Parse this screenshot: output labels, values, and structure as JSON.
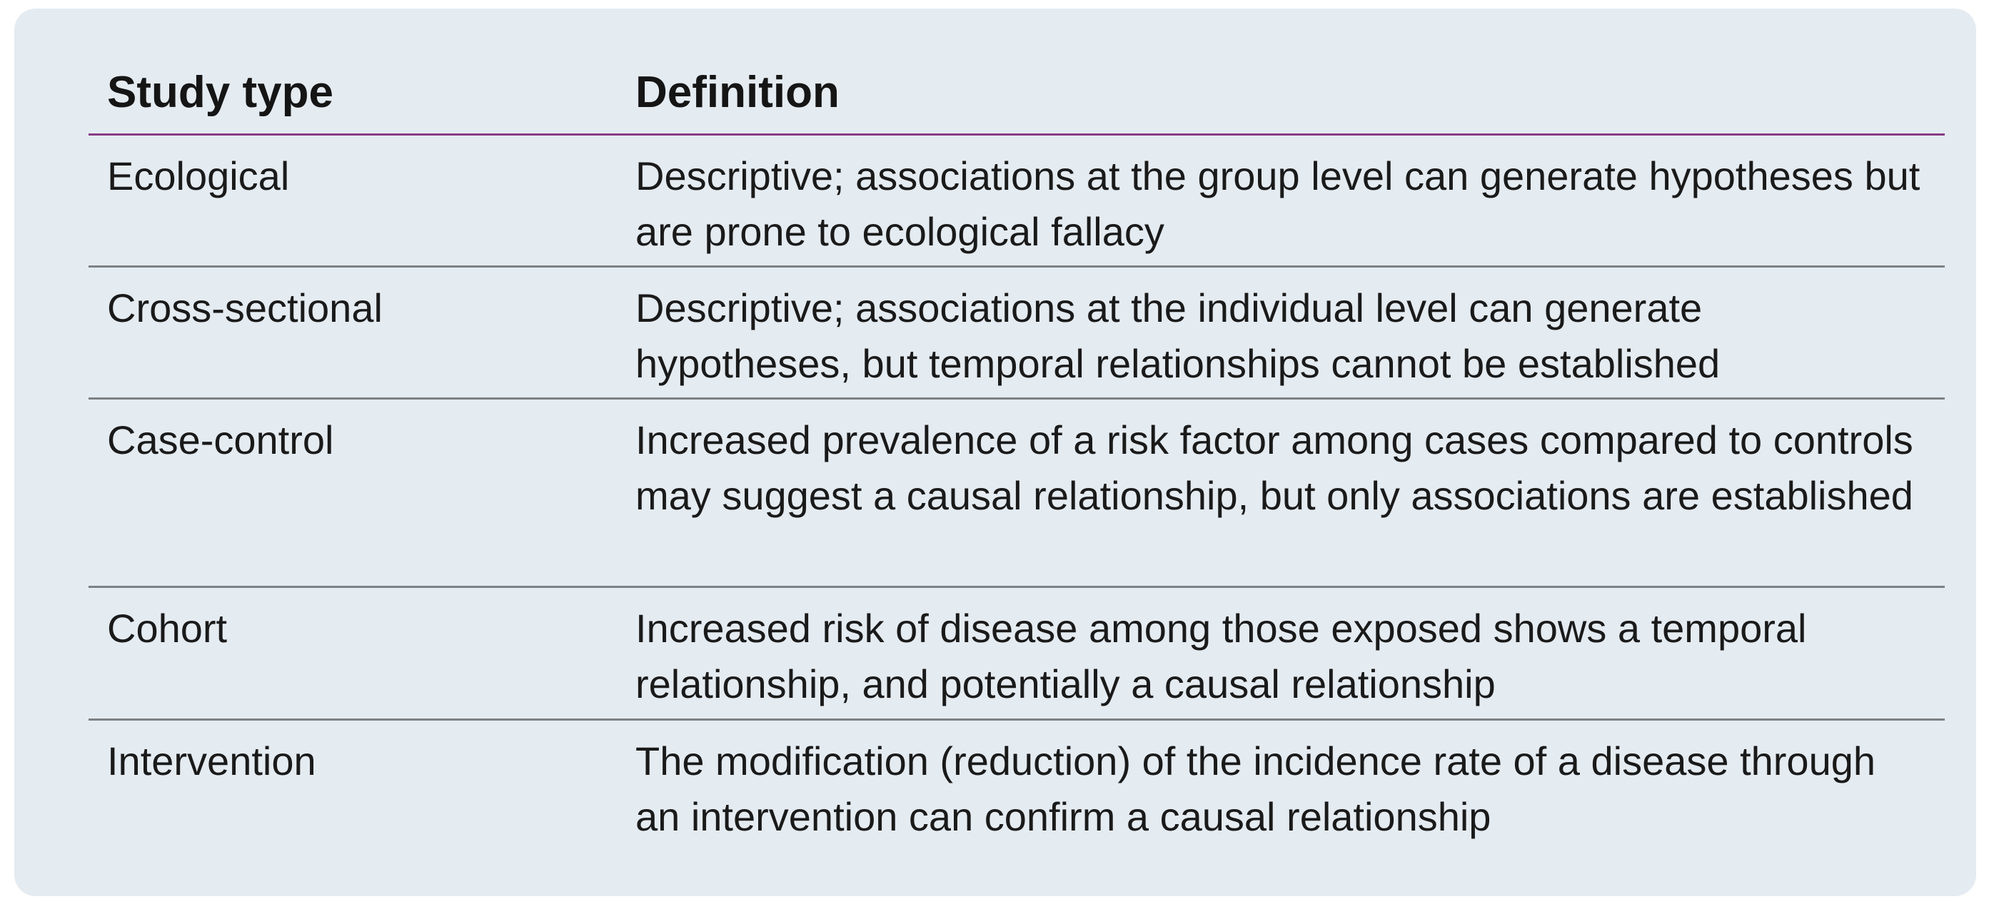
{
  "table": {
    "headers": [
      "Study type",
      "Definition"
    ],
    "rows": [
      {
        "type": "Ecological",
        "definition": "Descriptive; associations at the group level can generate hypotheses but are prone to ecological fallacy"
      },
      {
        "type": "Cross-sectional",
        "definition": "Descriptive; associations at the individual level can generate hypotheses, but temporal relationships cannot be established"
      },
      {
        "type": "Case-control",
        "definition": "Increased prevalence of a risk factor among cases compared to controls may suggest a causal relationship, but only associations are established"
      },
      {
        "type": "Cohort",
        "definition": "Increased risk of disease among those exposed shows a temporal relationship, and potentially a causal relationship"
      },
      {
        "type": "Intervention",
        "definition": "The modification (reduction) of the incidence rate of a disease through an intervention can confirm a causal relationship"
      }
    ]
  },
  "colors": {
    "panel_background": "#e4ebf1",
    "header_rule": "#8a3d82",
    "row_rule": "#7d8184"
  }
}
